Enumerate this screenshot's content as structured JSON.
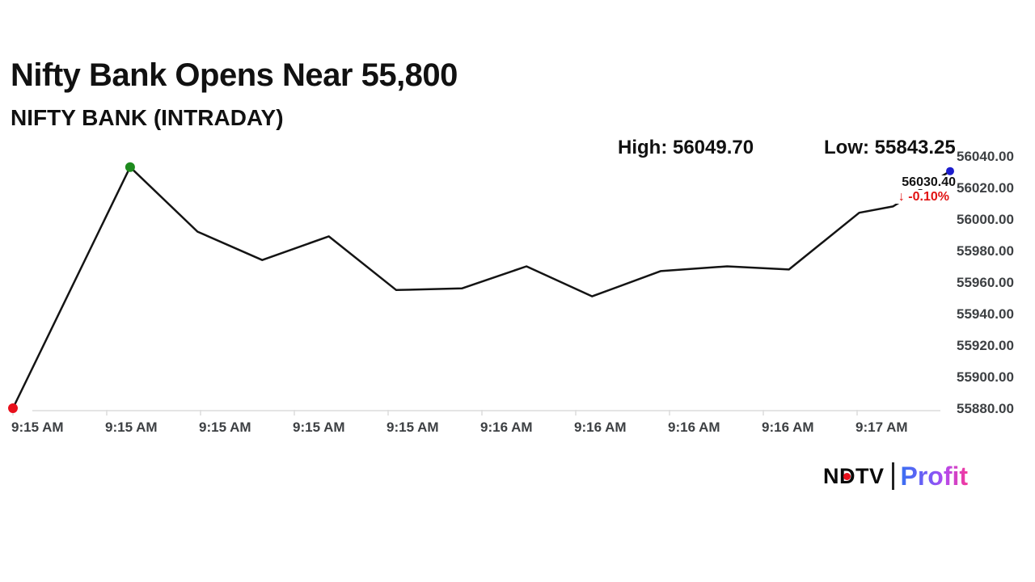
{
  "header": {
    "title": "Nifty Bank Opens Near 55,800",
    "subtitle": "NIFTY BANK (INTRADAY)"
  },
  "stats": {
    "high_label": "High: 56049.70",
    "low_label": "Low: 55843.25"
  },
  "callout": {
    "value": "56030.40",
    "arrow": "↓",
    "change": "-0.10%"
  },
  "branding": {
    "ndtv": "NDTV",
    "profit": "Profit"
  },
  "colors": {
    "line": "#141414",
    "axis": "#dcdcdc",
    "axis_text": "#3d4043",
    "open_marker": "#e8101c",
    "high_marker": "#1d8a1d",
    "last_marker": "#1c1ccd",
    "negative": "#e11212"
  },
  "chart_data": {
    "type": "line",
    "title": "NIFTY BANK (INTRADAY)",
    "grid": false,
    "legend": "none",
    "ylim": [
      55880,
      56040
    ],
    "y_tick_labels": [
      "56040.00",
      "56020.00",
      "56000.00",
      "55980.00",
      "55960.00",
      "55940.00",
      "55920.00",
      "55900.00",
      "55880.00"
    ],
    "y_tick_values": [
      56040,
      56020,
      56000,
      55980,
      55960,
      55940,
      55920,
      55900,
      55880
    ],
    "x_tick_labels": [
      "9:15 AM",
      "9:15 AM",
      "9:15 AM",
      "9:15 AM",
      "9:15 AM",
      "9:16 AM",
      "9:16 AM",
      "9:16 AM",
      "9:16 AM",
      "9:17 AM"
    ],
    "high": 56049.7,
    "low": 55843.25,
    "last": 56030.4,
    "change_pct": -0.1,
    "series": [
      {
        "name": "NIFTY BANK",
        "points": [
          {
            "t": 0.0,
            "v": 55880.0
          },
          {
            "t": 0.125,
            "v": 56033.0
          },
          {
            "t": 0.197,
            "v": 55992.0
          },
          {
            "t": 0.266,
            "v": 55974.0
          },
          {
            "t": 0.337,
            "v": 55989.0
          },
          {
            "t": 0.409,
            "v": 55955.0
          },
          {
            "t": 0.479,
            "v": 55956.0
          },
          {
            "t": 0.548,
            "v": 55970.0
          },
          {
            "t": 0.618,
            "v": 55951.0
          },
          {
            "t": 0.691,
            "v": 55967.0
          },
          {
            "t": 0.762,
            "v": 55970.0
          },
          {
            "t": 0.828,
            "v": 55968.0
          },
          {
            "t": 0.903,
            "v": 56004.0
          },
          {
            "t": 0.939,
            "v": 56008.0
          },
          {
            "t": 1.0,
            "v": 56030.4
          }
        ]
      }
    ],
    "markers": [
      {
        "point": 0,
        "name": "session-open-marker",
        "color_key": "open_marker",
        "r": 6
      },
      {
        "point": 1,
        "name": "session-high-marker",
        "color_key": "high_marker",
        "r": 6
      },
      {
        "point": 14,
        "name": "latest-price-marker",
        "color_key": "last_marker",
        "r": 5
      }
    ]
  }
}
